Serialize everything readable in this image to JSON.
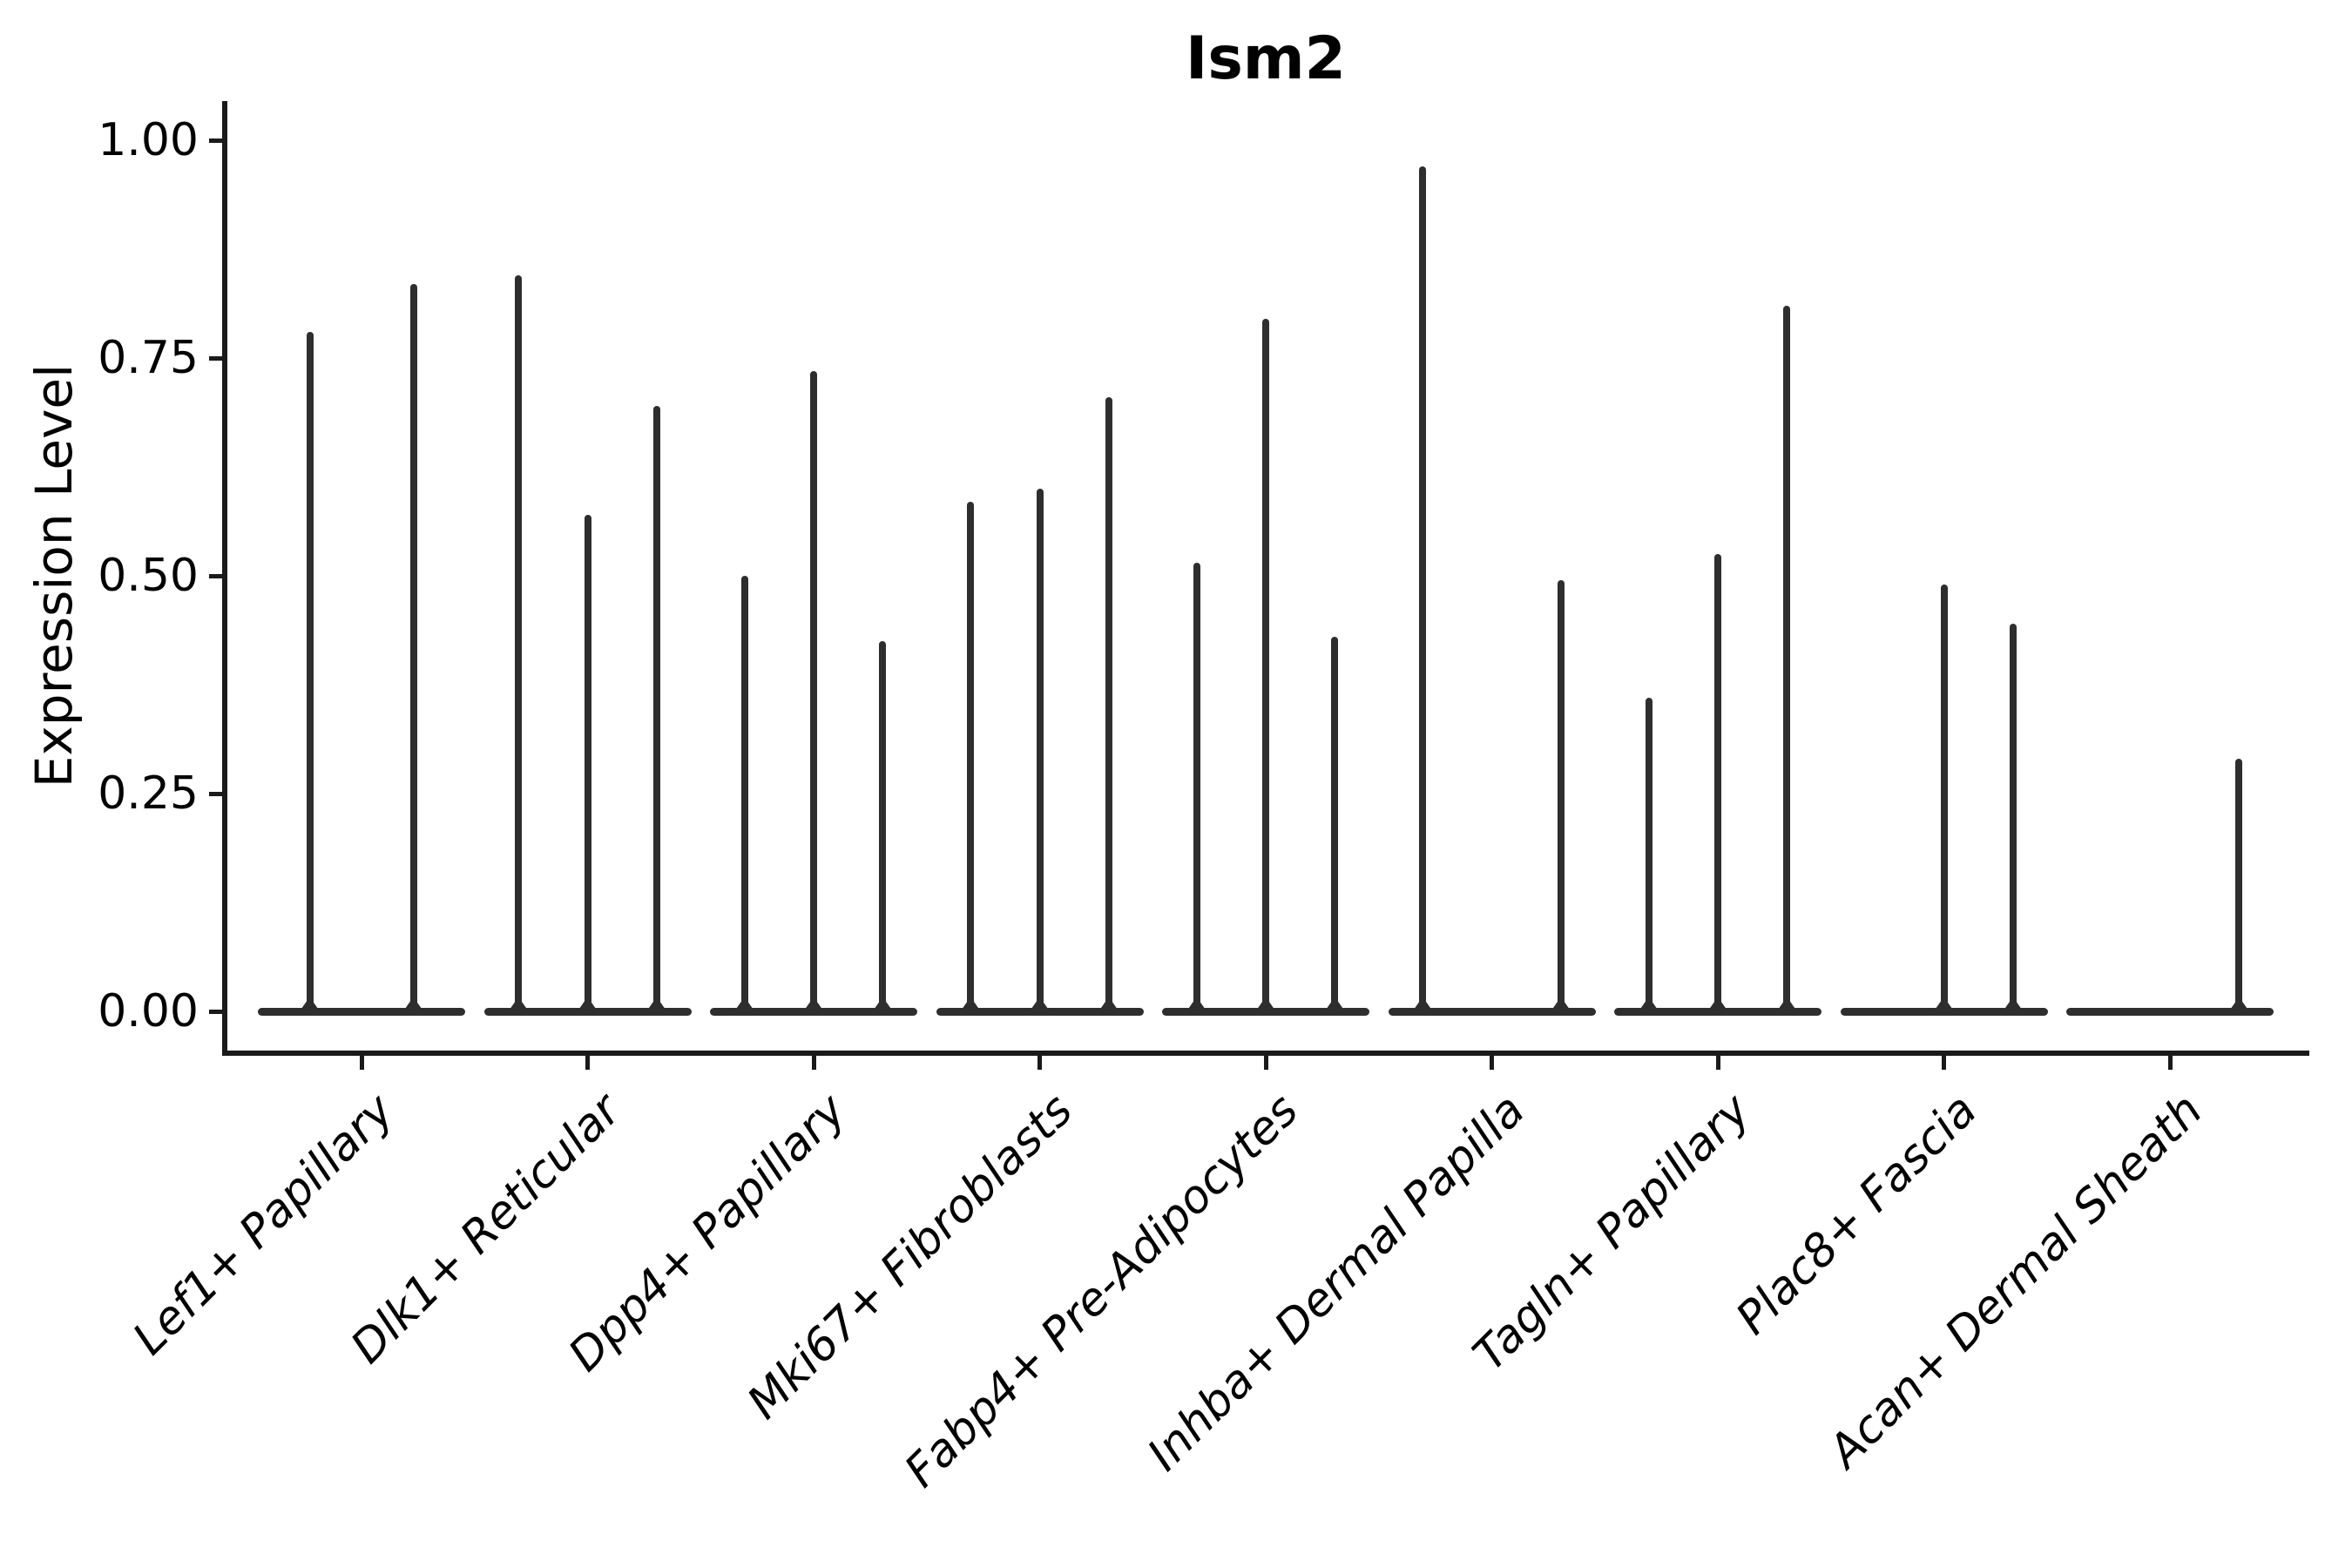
{
  "chart_data": {
    "type": "violin",
    "title": "Ism2",
    "ylabel": "Expression Level",
    "xlabel": "",
    "ylim": [
      0,
      1
    ],
    "yticks": [
      {
        "value": 0.0,
        "label": "0.00"
      },
      {
        "value": 0.25,
        "label": "0.25"
      },
      {
        "value": 0.5,
        "label": "0.50"
      },
      {
        "value": 0.75,
        "label": "0.75"
      },
      {
        "value": 1.0,
        "label": "1.00"
      }
    ],
    "legend": "none",
    "grid": false,
    "description": "Seurat-style violin plot of Ism2 expression; violins are needle-thin spikes rising from flat zero baselines; each category holds 2-3 dodged violins (0 = flat violin with no spike)",
    "categories": [
      {
        "label": "Lef1+ Papillary",
        "violin_max_values": [
          0.78,
          0.835
        ]
      },
      {
        "label": "Dlk1+ Reticular",
        "violin_max_values": [
          0.845,
          0.57,
          0.695
        ]
      },
      {
        "label": "Dpp4+ Papillary",
        "violin_max_values": [
          0.5,
          0.735,
          0.425
        ]
      },
      {
        "label": "Mki67+ Fibroblasts",
        "violin_max_values": [
          0.585,
          0.6,
          0.705
        ]
      },
      {
        "label": "Fabp4+ Pre-Adipocytes",
        "violin_max_values": [
          0.515,
          0.795,
          0.43
        ]
      },
      {
        "label": "Inhba+ Dermal Papilla",
        "violin_max_values": [
          0.97,
          0,
          0.495
        ]
      },
      {
        "label": "Tagln+ Papillary",
        "violin_max_values": [
          0.36,
          0.525,
          0.81
        ]
      },
      {
        "label": "Plac8+ Fascia",
        "violin_max_values": [
          0,
          0.49,
          0.445
        ]
      },
      {
        "label": "Acan+ Dermal Sheath",
        "violin_max_values": [
          0,
          0,
          0.29
        ]
      }
    ],
    "colors": {
      "violin_line": "#2e2e2e",
      "axis_line": "#1a1a1a",
      "text": "#000000",
      "background": "#ffffff"
    }
  }
}
